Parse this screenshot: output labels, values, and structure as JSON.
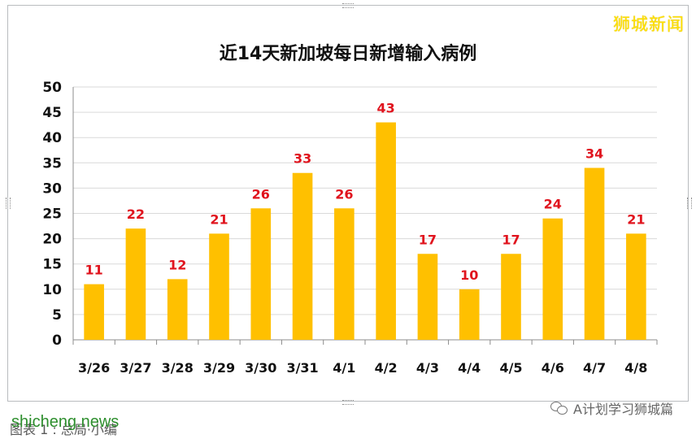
{
  "watermark_top": "狮城新闻",
  "footer": {
    "site": "shicheng.news",
    "caption": "图表 1 : 总局·小编",
    "account": "A计划学习狮城篇"
  },
  "colors": {
    "bar": "#ffc000",
    "label": "#e0141e",
    "grid": "#d9d9d9",
    "axis": "#8c8c8c"
  },
  "chart_data": {
    "type": "bar",
    "title": "近14天新加坡每日新增输入病例",
    "categories": [
      "3/26",
      "3/27",
      "3/28",
      "3/29",
      "3/30",
      "3/31",
      "4/1",
      "4/2",
      "4/3",
      "4/4",
      "4/5",
      "4/6",
      "4/7",
      "4/8"
    ],
    "values": [
      11,
      22,
      12,
      21,
      26,
      33,
      26,
      43,
      17,
      10,
      17,
      24,
      34,
      21
    ],
    "xlabel": "",
    "ylabel": "",
    "ylim": [
      0,
      50
    ],
    "yticks": [
      0,
      5,
      10,
      15,
      20,
      25,
      30,
      35,
      40,
      45,
      50
    ],
    "grid": true,
    "data_labels": true
  }
}
